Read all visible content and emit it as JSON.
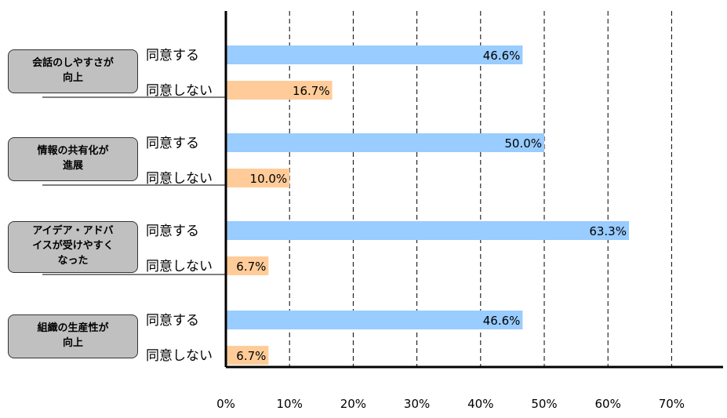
{
  "chart_data": {
    "type": "bar",
    "orientation": "horizontal",
    "groups": [
      {
        "label": "会話のしやすさが\n向上",
        "bars": [
          {
            "label": "同意する",
            "value": 46.6,
            "value_label": "46.6%",
            "color": "#99ccff"
          },
          {
            "label": "同意しない",
            "value": 16.7,
            "value_label": "16.7%",
            "color": "#ffcc99"
          }
        ]
      },
      {
        "label": "情報の共有化が\n進展",
        "bars": [
          {
            "label": "同意する",
            "value": 50.0,
            "value_label": "50.0%",
            "color": "#99ccff"
          },
          {
            "label": "同意しない",
            "value": 10.0,
            "value_label": "10.0%",
            "color": "#ffcc99"
          }
        ]
      },
      {
        "label": "アイデア・アドバ\nイスが受けやすく\nなった",
        "bars": [
          {
            "label": "同意する",
            "value": 63.3,
            "value_label": "63.3%",
            "color": "#99ccff"
          },
          {
            "label": "同意しない",
            "value": 6.7,
            "value_label": "6.7%",
            "color": "#ffcc99"
          }
        ]
      },
      {
        "label": "組織の生産性が\n向上",
        "bars": [
          {
            "label": "同意する",
            "value": 46.6,
            "value_label": "46.6%",
            "color": "#99ccff"
          },
          {
            "label": "同意しない",
            "value": 6.7,
            "value_label": "6.7%",
            "color": "#ffcc99"
          }
        ]
      }
    ],
    "x_ticks": [
      "0%",
      "10%",
      "20%",
      "30%",
      "40%",
      "50%",
      "60%",
      "70%"
    ],
    "xlim": [
      0,
      78
    ],
    "grid": "vertical dashed"
  }
}
